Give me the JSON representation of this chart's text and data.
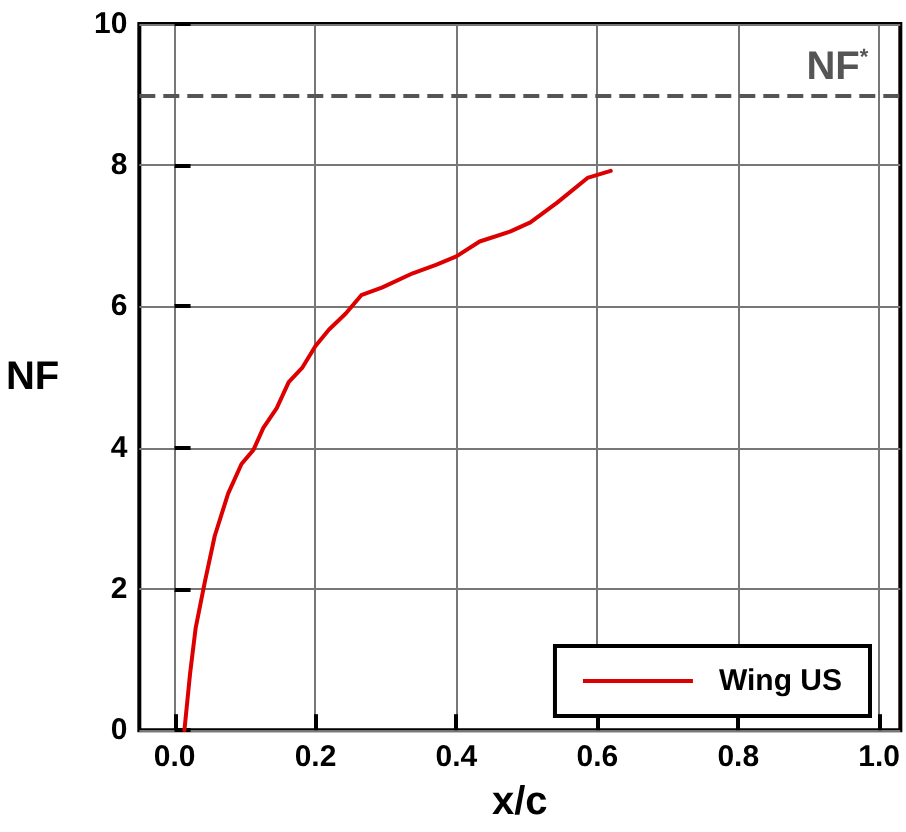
{
  "chart_data": {
    "type": "line",
    "xlabel": "x/c",
    "ylabel": "NF",
    "xlim": [
      -0.05,
      1.03
    ],
    "ylim": [
      0,
      10
    ],
    "xticks": [
      {
        "value": 0,
        "label": "0.0"
      },
      0.2,
      0.4,
      0.6,
      0.8,
      {
        "value": 1,
        "label": "1.0"
      }
    ],
    "yticks": [
      0,
      2,
      4,
      6,
      8,
      10
    ],
    "grid": true,
    "legend": "bottom right",
    "marker": "none",
    "line_style": "solid",
    "ref_lines": [
      {
        "axis": "y",
        "value": 9,
        "label": "NF$^{*}$",
        "color": "#555555",
        "line_style": "dashed"
      }
    ],
    "series": [
      {
        "name": "Wing US",
        "color": "#dd0000",
        "x": [
          0.014,
          0.022,
          0.03,
          0.043,
          0.057,
          0.076,
          0.095,
          0.112,
          0.126,
          0.145,
          0.162,
          0.181,
          0.2,
          0.219,
          0.243,
          0.265,
          0.295,
          0.338,
          0.371,
          0.4,
          0.433,
          0.476,
          0.505,
          0.543,
          0.586,
          0.619
        ],
        "values": [
          0,
          0.8,
          1.45,
          2.1,
          2.75,
          3.35,
          3.77,
          3.97,
          4.28,
          4.56,
          4.93,
          5.13,
          5.44,
          5.67,
          5.9,
          6.16,
          6.27,
          6.47,
          6.59,
          6.71,
          6.92,
          7.06,
          7.19,
          7.47,
          7.82,
          7.92
        ]
      }
    ]
  }
}
